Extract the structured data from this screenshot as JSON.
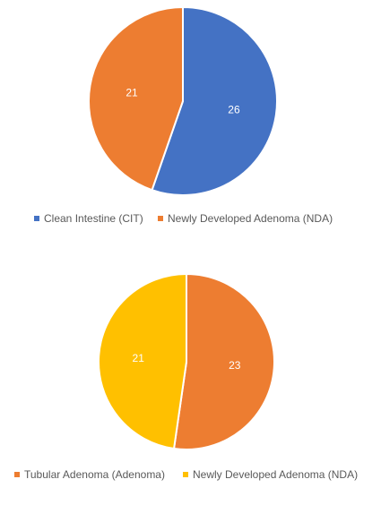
{
  "chart_data": [
    {
      "type": "pie",
      "title": "",
      "categories": [
        "Clean Intestine (CIT)",
        "Newly Developed Adenoma (NDA)"
      ],
      "values": [
        26,
        21
      ],
      "colors": [
        "#4472C4",
        "#ED7D31"
      ],
      "data_labels": [
        "26",
        "21"
      ],
      "data_label_color": "#FFFFFF",
      "start_angle_deg": 0,
      "direction": "clockwise",
      "legend_position": "bottom"
    },
    {
      "type": "pie",
      "title": "",
      "categories": [
        "Tubular Adenoma (Adenoma)",
        "Newly Developed Adenoma (NDA)"
      ],
      "values": [
        23,
        21
      ],
      "colors": [
        "#ED7D31",
        "#FFC000"
      ],
      "data_labels": [
        "23",
        "21"
      ],
      "data_label_color": "#FFFFFF",
      "start_angle_deg": 0,
      "direction": "clockwise",
      "legend_position": "bottom"
    }
  ]
}
